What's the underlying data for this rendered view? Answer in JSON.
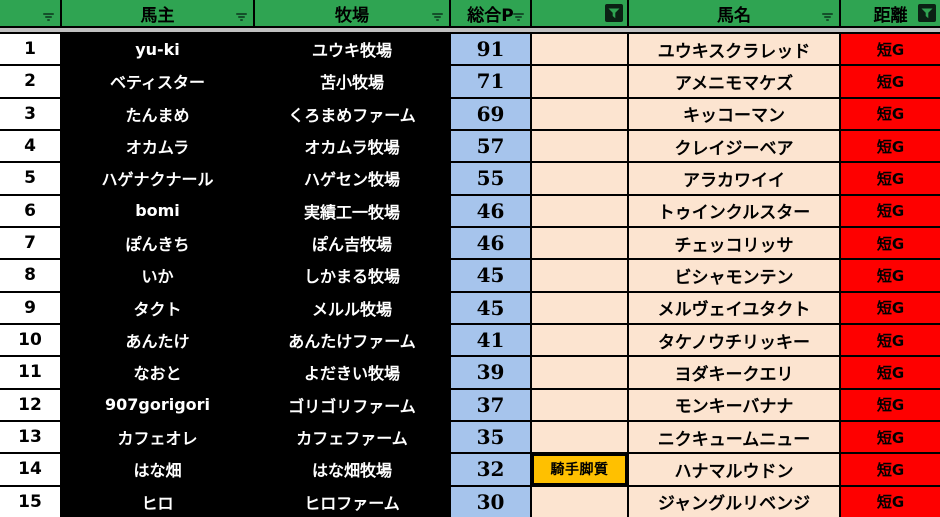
{
  "app": "spreadsheet-horse-ranking-table",
  "colors": {
    "header_green": "#2FA452",
    "owner_farm_black": "#000000",
    "points_blue": "#A6C4EC",
    "horse_peach": "#FCE4D0",
    "distance_red": "#FE0000",
    "jockey_gold": "#FFC000",
    "divider_gray": "#C0C0C0"
  },
  "icons": {
    "passive_filter": "funnel-lines-icon",
    "active_filter": "funnel-icon"
  },
  "header": {
    "cells": [
      {
        "key": "num",
        "label": "",
        "filter": "mini"
      },
      {
        "key": "owner",
        "label": "馬主",
        "filter": "mini"
      },
      {
        "key": "farm",
        "label": "牧場",
        "filter": "mini"
      },
      {
        "key": "points",
        "label": "総合P",
        "filter": "mini"
      },
      {
        "key": "extra",
        "label": "",
        "filter": "active"
      },
      {
        "key": "horse",
        "label": "馬名",
        "filter": "mini"
      },
      {
        "key": "distance",
        "label": "距離",
        "filter": "active"
      }
    ]
  },
  "rows": [
    {
      "num": "1",
      "owner": "yu-ki",
      "farm": "ユウキ牧場",
      "points": "91",
      "extra": "",
      "horse": "ユウキスクラレッド",
      "distance": "短G"
    },
    {
      "num": "2",
      "owner": "ベティスター",
      "farm": "苫小牧場",
      "points": "71",
      "extra": "",
      "horse": "アメニモマケズ",
      "distance": "短G"
    },
    {
      "num": "3",
      "owner": "たんまめ",
      "farm": "くろまめファーム",
      "points": "69",
      "extra": "",
      "horse": "キッコーマン",
      "distance": "短G"
    },
    {
      "num": "4",
      "owner": "オカムラ",
      "farm": "オカムラ牧場",
      "points": "57",
      "extra": "",
      "horse": "クレイジーベア",
      "distance": "短G"
    },
    {
      "num": "5",
      "owner": "ハゲナクナール",
      "farm": "ハゲセン牧場",
      "points": "55",
      "extra": "",
      "horse": "アラカワイイ",
      "distance": "短G"
    },
    {
      "num": "6",
      "owner": "bomi",
      "farm": "実績工一牧場",
      "points": "46",
      "extra": "",
      "horse": "トゥインクルスター",
      "distance": "短G"
    },
    {
      "num": "7",
      "owner": "ぽんきち",
      "farm": "ぽん吉牧場",
      "points": "46",
      "extra": "",
      "horse": "チェッコリッサ",
      "distance": "短G"
    },
    {
      "num": "8",
      "owner": "いか",
      "farm": "しかまる牧場",
      "points": "45",
      "extra": "",
      "horse": "ビシャモンテン",
      "distance": "短G"
    },
    {
      "num": "9",
      "owner": "タクト",
      "farm": "メルル牧場",
      "points": "45",
      "extra": "",
      "horse": "メルヴェイユタクト",
      "distance": "短G"
    },
    {
      "num": "10",
      "owner": "あんたけ",
      "farm": "あんたけファーム",
      "points": "41",
      "extra": "",
      "horse": "タケノウチリッキー",
      "distance": "短G"
    },
    {
      "num": "11",
      "owner": "なおと",
      "farm": "よだきい牧場",
      "points": "39",
      "extra": "",
      "horse": "ヨダキークエリ",
      "distance": "短G"
    },
    {
      "num": "12",
      "owner": "907gorigori",
      "farm": "ゴリゴリファーム",
      "points": "37",
      "extra": "",
      "horse": "モンキーバナナ",
      "distance": "短G"
    },
    {
      "num": "13",
      "owner": "カフェオレ",
      "farm": "カフェファーム",
      "points": "35",
      "extra": "",
      "horse": "ニクキュームニュー",
      "distance": "短G"
    },
    {
      "num": "14",
      "owner": "はな畑",
      "farm": "はな畑牧場",
      "points": "32",
      "extra": "騎手脚質",
      "horse": "ハナマルウドン",
      "distance": "短G"
    },
    {
      "num": "15",
      "owner": "ヒロ",
      "farm": "ヒロファーム",
      "points": "30",
      "extra": "",
      "horse": "ジャングルリベンジ",
      "distance": "短G"
    }
  ]
}
